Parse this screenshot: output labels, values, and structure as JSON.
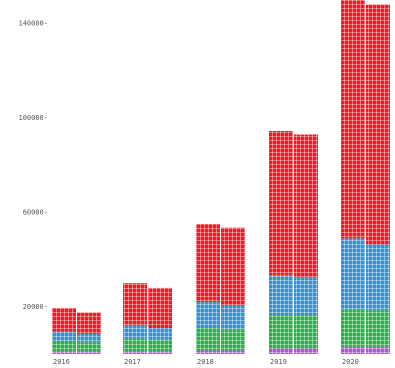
{
  "chart_data": {
    "type": "bar",
    "stacked": true,
    "style": "waffle-grid",
    "categories": [
      "2016",
      "2017",
      "2018",
      "2019",
      "2020"
    ],
    "y_ticks": [
      20000,
      60000,
      100000,
      140000
    ],
    "y_tick_labels": [
      "20000-",
      "60000-",
      "100000-",
      "140000-"
    ],
    "ylim": [
      0,
      150000
    ],
    "grid": false,
    "bar_pairs": [
      {
        "year": "2016",
        "left": {
          "purple": 1000,
          "green": 4500,
          "blue": 4000,
          "red": 10000
        },
        "right": {
          "purple": 1000,
          "green": 4000,
          "blue": 3500,
          "red": 9000
        }
      },
      {
        "year": "2017",
        "left": {
          "purple": 1000,
          "green": 5500,
          "blue": 5500,
          "red": 18000
        },
        "right": {
          "purple": 1000,
          "green": 5000,
          "blue": 5000,
          "red": 17000
        }
      },
      {
        "year": "2018",
        "left": {
          "purple": 1500,
          "green": 9500,
          "blue": 11000,
          "red": 33000
        },
        "right": {
          "purple": 1500,
          "green": 9000,
          "blue": 10000,
          "red": 33000
        }
      },
      {
        "year": "2019",
        "left": {
          "purple": 2500,
          "green": 14000,
          "blue": 17000,
          "red": 61000
        },
        "right": {
          "purple": 2500,
          "green": 14000,
          "blue": 16000,
          "red": 60500
        }
      },
      {
        "year": "2020",
        "left": {
          "purple": 3000,
          "green": 16000,
          "blue": 30000,
          "red": 101000
        },
        "right": {
          "purple": 3000,
          "green": 15500,
          "blue": 28000,
          "red": 101500
        }
      }
    ],
    "colors": {
      "purple": "#a85cc8",
      "green": "#2fae4e",
      "blue": "#3a8fd0",
      "red": "#ee1b24"
    }
  }
}
